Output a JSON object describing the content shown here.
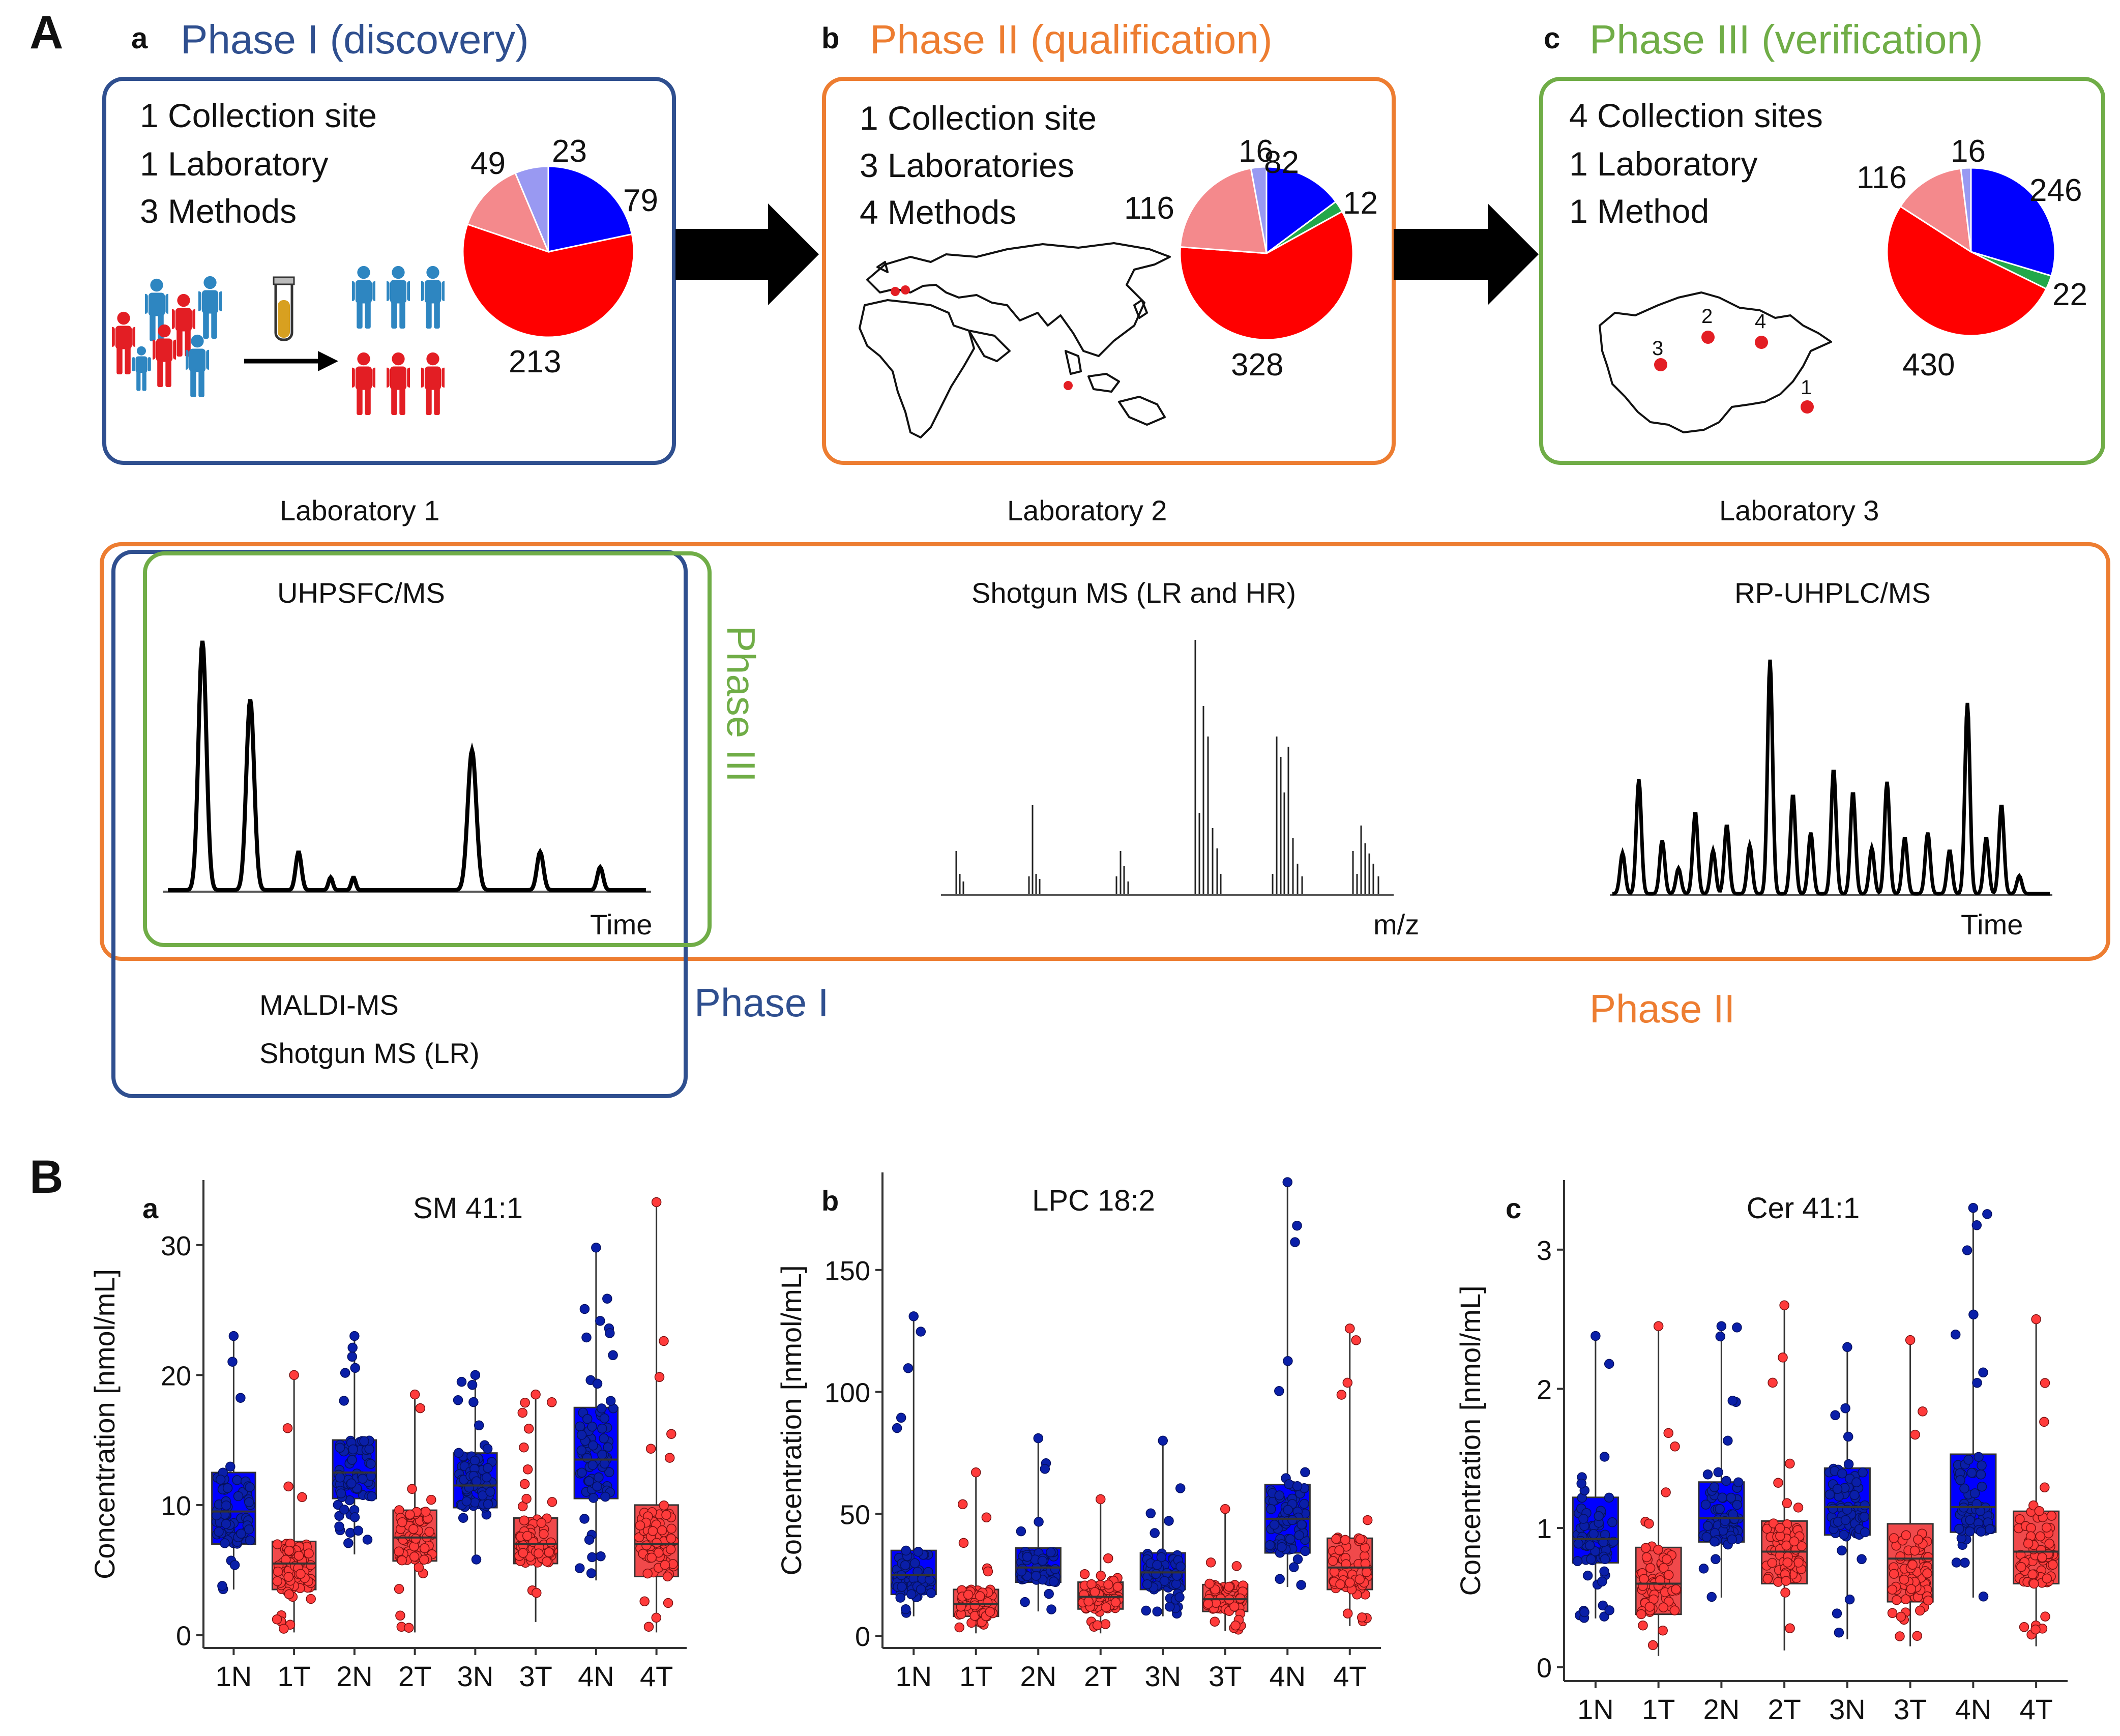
{
  "colors": {
    "phase1": "#2f4f8f",
    "phase2": "#ed7d31",
    "phase3": "#70ad47",
    "normal": "#0000ff",
    "tumor": "#ff0000",
    "light_red": "#f4898c",
    "light_blue": "#9999f2",
    "green": "#22a84a",
    "person_blue": "#2e86c1",
    "person_red": "#e31e24"
  },
  "panel_A": {
    "letter": "A",
    "phases": [
      {
        "sub": "a",
        "title": "Phase I (discovery)",
        "lines": [
          "1 Collection site",
          "1 Laboratory",
          "3 Methods"
        ],
        "pie": [
          {
            "label": "79",
            "value": 79,
            "color": "#0000ff"
          },
          {
            "label": "213",
            "value": 213,
            "color": "#ff0000"
          },
          {
            "label": "49",
            "value": 49,
            "color": "#f4898c"
          },
          {
            "label": "23",
            "value": 23,
            "color": "#9999f2"
          }
        ]
      },
      {
        "sub": "b",
        "title": "Phase II (qualification)",
        "lines": [
          "1 Collection site",
          "3 Laboratories",
          "4 Methods"
        ],
        "pie": [
          {
            "label": "82",
            "value": 82,
            "color": "#0000ff"
          },
          {
            "label": "12",
            "value": 12,
            "color": "#22a84a"
          },
          {
            "label": "328",
            "value": 328,
            "color": "#ff0000"
          },
          {
            "label": "116",
            "value": 116,
            "color": "#f4898c"
          },
          {
            "label": "16",
            "value": 16,
            "color": "#9999f2"
          }
        ]
      },
      {
        "sub": "c",
        "title": "Phase III (verification)",
        "lines": [
          "4 Collection sites",
          "1 Laboratory",
          "1 Method"
        ],
        "pie": [
          {
            "label": "246",
            "value": 246,
            "color": "#0000ff"
          },
          {
            "label": "22",
            "value": 22,
            "color": "#22a84a"
          },
          {
            "label": "430",
            "value": 430,
            "color": "#ff0000"
          },
          {
            "label": "116",
            "value": 116,
            "color": "#f4898c"
          },
          {
            "label": "16",
            "value": 16,
            "color": "#9999f2"
          }
        ]
      }
    ],
    "map_sites": [
      "1",
      "2",
      "3",
      "4"
    ],
    "labs": [
      "Laboratory 1",
      "Laboratory 2",
      "Laboratory 3"
    ],
    "methods": {
      "m1": {
        "title": "UHPSFC/MS",
        "axis": "Time"
      },
      "m2": {
        "title": "Shotgun MS (LR and HR)",
        "axis": "m/z"
      },
      "m3": {
        "title": "RP-UHPLC/MS",
        "axis": "Time"
      },
      "extra": [
        "MALDI-MS",
        "Shotgun MS (LR)"
      ]
    },
    "phase_labels": {
      "p1": "Phase I",
      "p2": "Phase II",
      "p3": "Phase III"
    }
  },
  "panel_B": {
    "letter": "B",
    "chart_data": [
      {
        "type": "box",
        "sub": "a",
        "title": "SM 41:1",
        "ylabel": "Concentration [nmol/mL]",
        "xlabel": "",
        "categories": [
          "1N",
          "1T",
          "2N",
          "2T",
          "3N",
          "3T",
          "4N",
          "4T"
        ],
        "ylim": [
          -1,
          35
        ],
        "yticks": [
          0,
          10,
          20,
          30
        ],
        "boxes": [
          {
            "q1": 7.0,
            "median": 9.5,
            "q3": 12.5,
            "min": 3.5,
            "max": 23
          },
          {
            "q1": 3.5,
            "median": 5.5,
            "q3": 7.2,
            "min": 0.2,
            "max": 20
          },
          {
            "q1": 10.5,
            "median": 12.5,
            "q3": 15.0,
            "min": 6.2,
            "max": 23
          },
          {
            "q1": 5.7,
            "median": 7.5,
            "q3": 9.6,
            "min": 0.2,
            "max": 18.5
          },
          {
            "q1": 9.8,
            "median": 11.5,
            "q3": 14.0,
            "min": 5.5,
            "max": 20
          },
          {
            "q1": 5.5,
            "median": 7.0,
            "q3": 9.0,
            "min": 1.0,
            "max": 18.5
          },
          {
            "q1": 10.5,
            "median": 13.5,
            "q3": 17.5,
            "min": 4.2,
            "max": 29.8
          },
          {
            "q1": 4.5,
            "median": 7.0,
            "q3": 10.0,
            "min": 0.2,
            "max": 33.3
          }
        ]
      },
      {
        "type": "box",
        "sub": "b",
        "title": "LPC 18:2",
        "ylabel": "Concentration [nmol/mL]",
        "xlabel": "",
        "categories": [
          "1N",
          "1T",
          "2N",
          "2T",
          "3N",
          "3T",
          "4N",
          "4T"
        ],
        "ylim": [
          -5,
          190
        ],
        "yticks": [
          0,
          50,
          100,
          150
        ],
        "boxes": [
          {
            "q1": 17,
            "median": 25,
            "q3": 35,
            "min": 8,
            "max": 131
          },
          {
            "q1": 8,
            "median": 13,
            "q3": 19,
            "min": 1,
            "max": 67
          },
          {
            "q1": 22,
            "median": 28,
            "q3": 36,
            "min": 10,
            "max": 81
          },
          {
            "q1": 11,
            "median": 16,
            "q3": 22,
            "min": 1,
            "max": 56
          },
          {
            "q1": 19,
            "median": 26,
            "q3": 34,
            "min": 8,
            "max": 80
          },
          {
            "q1": 10,
            "median": 15,
            "q3": 21,
            "min": 2,
            "max": 52
          },
          {
            "q1": 34,
            "median": 48,
            "q3": 62,
            "min": 20,
            "max": 186
          },
          {
            "q1": 19,
            "median": 28,
            "q3": 40,
            "min": 4,
            "max": 126
          }
        ]
      },
      {
        "type": "box",
        "sub": "c",
        "title": "Cer 41:1",
        "ylabel": "Concentration [nmol/mL]",
        "xlabel": "",
        "categories": [
          "1N",
          "1T",
          "2N",
          "2T",
          "3N",
          "3T",
          "4N",
          "4T"
        ],
        "ylim": [
          -0.1,
          3.5
        ],
        "yticks": [
          0,
          1,
          2,
          3
        ],
        "boxes": [
          {
            "q1": 0.75,
            "median": 0.92,
            "q3": 1.22,
            "min": 0.35,
            "max": 2.38
          },
          {
            "q1": 0.38,
            "median": 0.6,
            "q3": 0.86,
            "min": 0.08,
            "max": 2.45
          },
          {
            "q1": 0.9,
            "median": 1.07,
            "q3": 1.33,
            "min": 0.5,
            "max": 2.45
          },
          {
            "q1": 0.6,
            "median": 0.83,
            "q3": 1.05,
            "min": 0.12,
            "max": 2.6
          },
          {
            "q1": 0.95,
            "median": 1.15,
            "q3": 1.43,
            "min": 0.2,
            "max": 2.3
          },
          {
            "q1": 0.47,
            "median": 0.78,
            "q3": 1.03,
            "min": 0.15,
            "max": 2.35
          },
          {
            "q1": 0.97,
            "median": 1.15,
            "q3": 1.53,
            "min": 0.5,
            "max": 3.3
          },
          {
            "q1": 0.6,
            "median": 0.83,
            "q3": 1.12,
            "min": 0.15,
            "max": 2.5
          }
        ]
      }
    ]
  }
}
